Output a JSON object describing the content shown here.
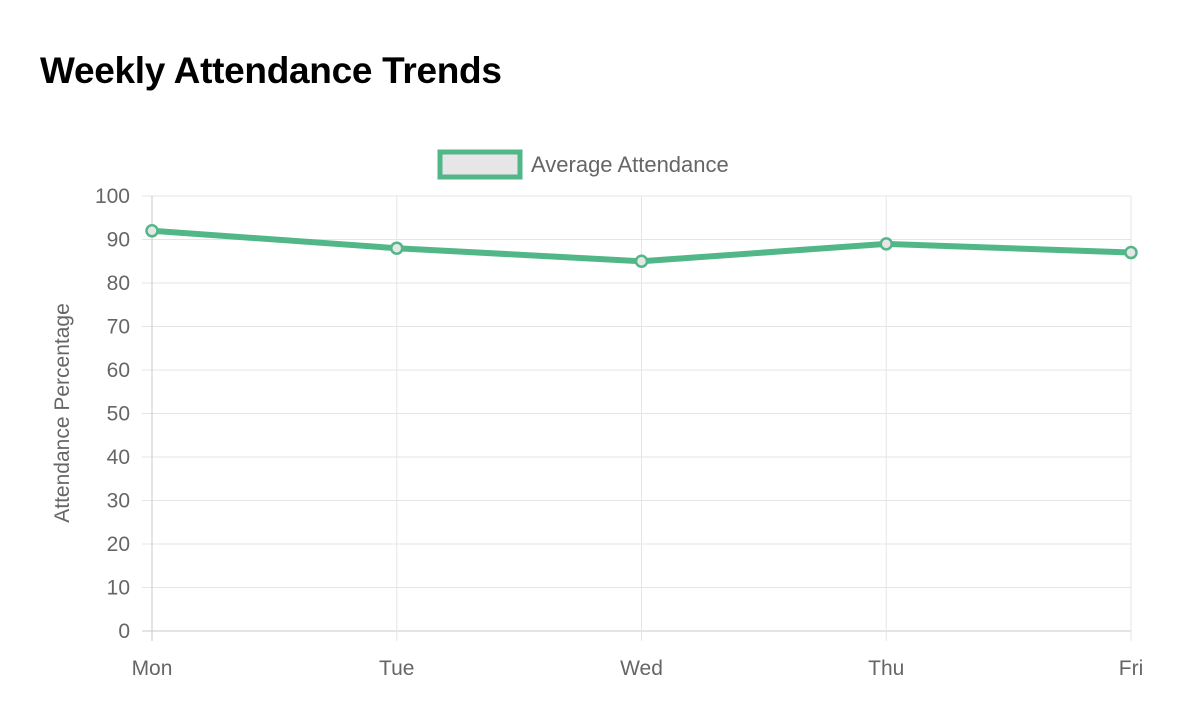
{
  "page": {
    "title": "Weekly Attendance Trends"
  },
  "chart_data": {
    "type": "line",
    "title": "",
    "xlabel": "",
    "ylabel": "Attendance Percentage",
    "categories": [
      "Mon",
      "Tue",
      "Wed",
      "Thu",
      "Fri"
    ],
    "series": [
      {
        "name": "Average Attendance",
        "values": [
          92,
          88,
          85,
          89,
          87
        ],
        "color": "#52b788",
        "fill_color": "#e6e6e6"
      }
    ],
    "ylim": [
      0,
      100
    ],
    "yticks": [
      "0",
      "10",
      "20",
      "30",
      "40",
      "50",
      "60",
      "70",
      "80",
      "90",
      "100"
    ],
    "grid": true,
    "legend_position": "top-center"
  }
}
